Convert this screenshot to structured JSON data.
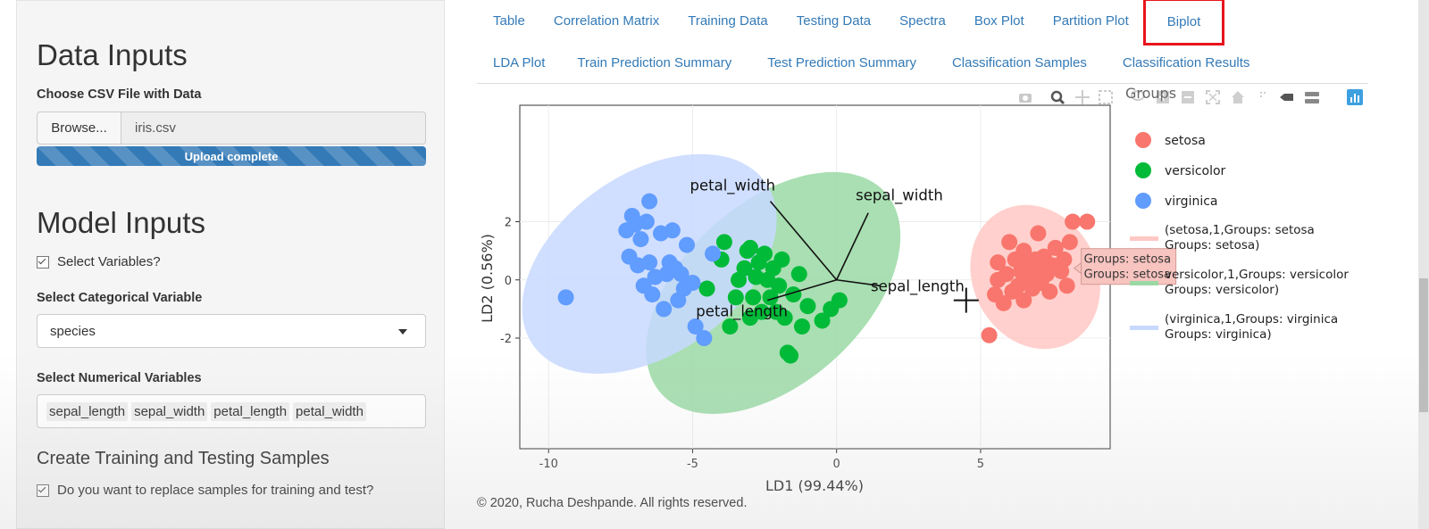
{
  "sidebar": {
    "data_inputs_title": "Data Inputs",
    "csv_label": "Choose CSV File with Data",
    "browse_label": "Browse...",
    "file_name": "iris.csv",
    "upload_status": "Upload complete",
    "upload_progress": 1.0,
    "model_inputs_title": "Model Inputs",
    "select_variables_label": "Select Variables?",
    "categorical_label": "Select Categorical Variable",
    "categorical_value": "species",
    "numerical_label": "Select Numerical Variables",
    "numerical_values": [
      "sepal_length",
      "sepal_width",
      "petal_length",
      "petal_width"
    ],
    "samples_title": "Create Training and Testing Samples",
    "replace_label": "Do you want to replace samples for training and test?"
  },
  "tabs": {
    "row1": [
      "Table",
      "Correlation Matrix",
      "Training Data",
      "Testing Data",
      "Spectra",
      "Box Plot",
      "Partition Plot",
      "Biplot"
    ],
    "row2": [
      "LDA Plot",
      "Train Prediction Summary",
      "Test Prediction Summary",
      "Classification Samples",
      "Classification Results"
    ],
    "active": "Biplot",
    "active_outline_color": "#e8141c",
    "link_color": "#337ab7"
  },
  "chart_data": {
    "type": "scatter",
    "xlabel": "LD1 (99.44%)",
    "ylabel": "LD2 (0.56%)",
    "xlim": [
      -11,
      9.5
    ],
    "ylim": [
      -5.8,
      6
    ],
    "xticks": [
      -10,
      -5,
      0,
      5
    ],
    "yticks": [
      -2,
      0,
      2
    ],
    "grid": true,
    "legend_title": "Groups",
    "legend_position": "right",
    "series": [
      {
        "name": "setosa",
        "color": "#f8766d",
        "points": [
          [
            5.3,
            -1.9
          ],
          [
            5.5,
            -0.5
          ],
          [
            5.6,
            0
          ],
          [
            5.6,
            0.6
          ],
          [
            5.8,
            -0.8
          ],
          [
            5.9,
            0.2
          ],
          [
            6,
            1.3
          ],
          [
            6.1,
            -0.4
          ],
          [
            6.2,
            0.7
          ],
          [
            6.3,
            -0.2
          ],
          [
            6.4,
            0.3
          ],
          [
            6.5,
            1
          ],
          [
            6.5,
            -0.7
          ],
          [
            6.6,
            0.5
          ],
          [
            6.7,
            0.1
          ],
          [
            6.8,
            -0.3
          ],
          [
            6.9,
            0.7
          ],
          [
            7,
            0.4
          ],
          [
            7,
            1.6
          ],
          [
            7.1,
            -0.1
          ],
          [
            7.2,
            0.8
          ],
          [
            7.3,
            0.2
          ],
          [
            7.4,
            -0.4
          ],
          [
            7.5,
            0.5
          ],
          [
            7.6,
            1.1
          ],
          [
            7.8,
            0.3
          ],
          [
            7.9,
            0.7
          ],
          [
            8,
            -0.2
          ],
          [
            8.1,
            1.3
          ],
          [
            8.2,
            2
          ],
          [
            8.7,
            2
          ]
        ]
      },
      {
        "name": "versicolor",
        "color": "#00ba38",
        "points": [
          [
            -4.5,
            -0.3
          ],
          [
            -4,
            0.7
          ],
          [
            -3.9,
            1.3
          ],
          [
            -3.7,
            -1.6
          ],
          [
            -3.5,
            -0.6
          ],
          [
            -3.4,
            0
          ],
          [
            -3.2,
            0.4
          ],
          [
            -3.1,
            1
          ],
          [
            -3,
            -1.3
          ],
          [
            -3,
            1.1
          ],
          [
            -2.9,
            -0.6
          ],
          [
            -2.8,
            0.1
          ],
          [
            -2.7,
            0.6
          ],
          [
            -2.6,
            -1.1
          ],
          [
            -2.5,
            0.9
          ],
          [
            -2.4,
            0
          ],
          [
            -2.3,
            -0.6
          ],
          [
            -2.2,
            0.4
          ],
          [
            -2.1,
            -1.1
          ],
          [
            -2,
            -0.2
          ],
          [
            -1.9,
            0.7
          ],
          [
            -1.8,
            -1.3
          ],
          [
            -1.7,
            -2.5
          ],
          [
            -1.6,
            -2.6
          ],
          [
            -1.5,
            -0.5
          ],
          [
            -1.3,
            0.2
          ],
          [
            -1.2,
            -1.6
          ],
          [
            -1,
            -0.9
          ],
          [
            -0.5,
            -1.4
          ],
          [
            -0.2,
            -1
          ],
          [
            0.1,
            -0.7
          ]
        ]
      },
      {
        "name": "virginica",
        "color": "#619cff",
        "points": [
          [
            -9.4,
            -0.6
          ],
          [
            -7.3,
            1.7
          ],
          [
            -7.2,
            0.8
          ],
          [
            -7.1,
            2.2
          ],
          [
            -7,
            1.9
          ],
          [
            -6.9,
            0.5
          ],
          [
            -6.8,
            1.4
          ],
          [
            -6.7,
            -0.2
          ],
          [
            -6.6,
            2
          ],
          [
            -6.5,
            2.7
          ],
          [
            -6.5,
            0.6
          ],
          [
            -6.4,
            -0.5
          ],
          [
            -6.3,
            0.1
          ],
          [
            -6.1,
            1.6
          ],
          [
            -6,
            -1
          ],
          [
            -5.9,
            0.2
          ],
          [
            -5.8,
            0.6
          ],
          [
            -5.7,
            1.7
          ],
          [
            -5.6,
            0.4
          ],
          [
            -5.5,
            -0.7
          ],
          [
            -5.4,
            0.2
          ],
          [
            -5.3,
            -0.3
          ],
          [
            -5.2,
            1.2
          ],
          [
            -5,
            -0.1
          ],
          [
            -4.9,
            -1.6
          ],
          [
            -4.6,
            -2
          ],
          [
            -4.3,
            0.9
          ]
        ]
      }
    ],
    "ellipses": [
      {
        "name": "(setosa,1,Groups: setosa Groups: setosa)",
        "legend_lines": [
          "(setosa,1,Groups: setosa",
          "Groups: setosa)"
        ],
        "fill": "#ffc8c4",
        "cx": 6.9,
        "cy": 0.1,
        "rx": 2.15,
        "ry": 3.55,
        "angle_deg": 27
      },
      {
        "name": "(versicolor,1,Groups: versicolor Groups: versicolor)",
        "legend_lines": [
          "versicolor,1,Groups: versicolor",
          "Groups: versicolor)"
        ],
        "fill": "#9ad9a5",
        "cx": -2.2,
        "cy": -0.45,
        "rx": 5.2,
        "ry": 4.3,
        "angle_deg": 42
      },
      {
        "name": "(virginica,1,Groups: virginica Groups: virginica)",
        "legend_lines": [
          "(virginica,1,Groups: virginica",
          "Groups: virginica)"
        ],
        "fill": "#c8d9ff",
        "cx": -6.5,
        "cy": 0.55,
        "rx": 4.9,
        "ry": 4.3,
        "angle_deg": 35
      }
    ],
    "arrows": [
      {
        "label": "petal_width",
        "x": -2.3,
        "y": 2.7
      },
      {
        "label": "sepal_width",
        "x": 1.1,
        "y": 2.3
      },
      {
        "label": "sepal_length",
        "x": 1.5,
        "y": -0.2
      },
      {
        "label": "petal_length",
        "x": -2.4,
        "y": -0.7
      }
    ],
    "crosshair": {
      "x": 4.5,
      "y": -0.7
    },
    "tooltip": {
      "lines": [
        "Groups: setosa",
        "Groups: setosa"
      ],
      "x": 8,
      "y": 0.4
    }
  },
  "footer": "© 2020, Rucha Deshpande. All rights reserved.",
  "modebar_icons": [
    "camera-icon",
    "zoom-icon",
    "pan-icon",
    "box-select-icon",
    "lasso-icon",
    "zoom-in-icon",
    "zoom-out-icon",
    "autoscale-icon",
    "reset-icon",
    "spike-lines-icon",
    "hover-closest-icon",
    "hover-compare-icon",
    "plotly-logo-icon"
  ]
}
